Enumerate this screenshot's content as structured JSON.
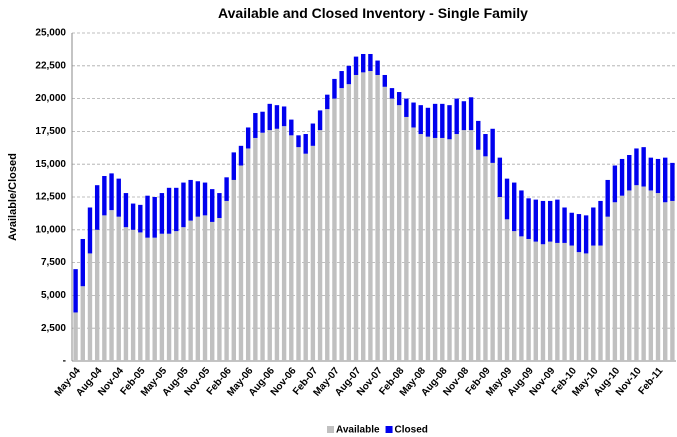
{
  "chart_data": {
    "type": "stacked_bar",
    "title": "Available and Closed Inventory - Single Family",
    "y_label": "Available/Closed",
    "categories": [
      "May-04",
      null,
      null,
      "Aug-04",
      null,
      null,
      "Nov-04",
      null,
      null,
      "Feb-05",
      null,
      null,
      "May-05",
      null,
      null,
      "Aug-05",
      null,
      null,
      "Nov-05",
      null,
      null,
      "Feb-06",
      null,
      null,
      "May-06",
      null,
      null,
      "Aug-06",
      null,
      null,
      "Nov-06",
      null,
      null,
      "Feb-07",
      null,
      null,
      "May-07",
      null,
      null,
      "Aug-07",
      null,
      null,
      "Nov-07",
      null,
      null,
      "Feb-08",
      null,
      null,
      "May-08",
      null,
      null,
      "Aug-08",
      null,
      null,
      "Nov-08",
      null,
      null,
      "Feb-09",
      null,
      null,
      "May-09",
      null,
      null,
      "Aug-09",
      null,
      null,
      "Nov-09",
      null,
      null,
      "Feb-10",
      null,
      null,
      "May-10",
      null,
      null,
      "Aug-10",
      null,
      null,
      "Nov-10",
      null,
      null,
      "Feb-11",
      null,
      null
    ],
    "series": [
      {
        "name": "Available",
        "color": "#c0c0c0",
        "values": [
          3700,
          5700,
          8200,
          10000,
          11100,
          11500,
          11000,
          10200,
          10000,
          9800,
          9400,
          9400,
          9700,
          9700,
          9900,
          10200,
          10700,
          11000,
          11100,
          10600,
          10900,
          12200,
          13800,
          14900,
          16200,
          17000,
          17400,
          17600,
          17700,
          17900,
          17200,
          16300,
          15800,
          16400,
          17600,
          19200,
          20000,
          20800,
          21100,
          21800,
          22000,
          22100,
          21800,
          20900,
          20000,
          19500,
          18600,
          17800,
          17300,
          17100,
          17000,
          17000,
          16900,
          17300,
          17600,
          17600,
          16100,
          15600,
          15100,
          12500,
          10800,
          9900,
          9500,
          9300,
          9100,
          8900,
          9100,
          9000,
          9000,
          8800,
          8300,
          8200,
          8800,
          8800,
          11000,
          12100,
          12600,
          13000,
          13400,
          13300,
          13000,
          12800,
          12100,
          12200
        ]
      },
      {
        "name": "Closed",
        "color": "#0000ee",
        "values": [
          3300,
          3600,
          3500,
          3400,
          3000,
          2800,
          2900,
          2600,
          2000,
          2100,
          3200,
          3100,
          3100,
          3500,
          3300,
          3400,
          3100,
          2700,
          2500,
          2500,
          1900,
          1800,
          2100,
          1500,
          1600,
          1900,
          1600,
          2000,
          1800,
          1500,
          1200,
          900,
          1500,
          1700,
          1500,
          1100,
          1500,
          1300,
          1400,
          1400,
          1400,
          1300,
          1100,
          900,
          800,
          1000,
          1400,
          1900,
          2200,
          2200,
          2600,
          2600,
          2600,
          2700,
          2200,
          2500,
          2200,
          1700,
          2600,
          3000,
          3100,
          3700,
          3500,
          3100,
          3200,
          3300,
          3100,
          3300,
          2700,
          2500,
          2900,
          2900,
          2900,
          3400,
          2800,
          2800,
          2800,
          2700,
          2800,
          3000,
          2500,
          2600,
          3400,
          2900
        ]
      }
    ],
    "ylim": [
      0,
      25000
    ],
    "yticks": [
      {
        "value": 0,
        "label": "-"
      },
      {
        "value": 2500,
        "label": "2,500"
      },
      {
        "value": 5000,
        "label": "5,000"
      },
      {
        "value": 7500,
        "label": "7,500"
      },
      {
        "value": 10000,
        "label": "10,000"
      },
      {
        "value": 12500,
        "label": "12,500"
      },
      {
        "value": 15000,
        "label": "15,000"
      },
      {
        "value": 17500,
        "label": "17,500"
      },
      {
        "value": 20000,
        "label": "20,000"
      },
      {
        "value": 22500,
        "label": "22,500"
      },
      {
        "value": 25000,
        "label": "25,000"
      }
    ],
    "grid": true,
    "legend": "bottom"
  }
}
